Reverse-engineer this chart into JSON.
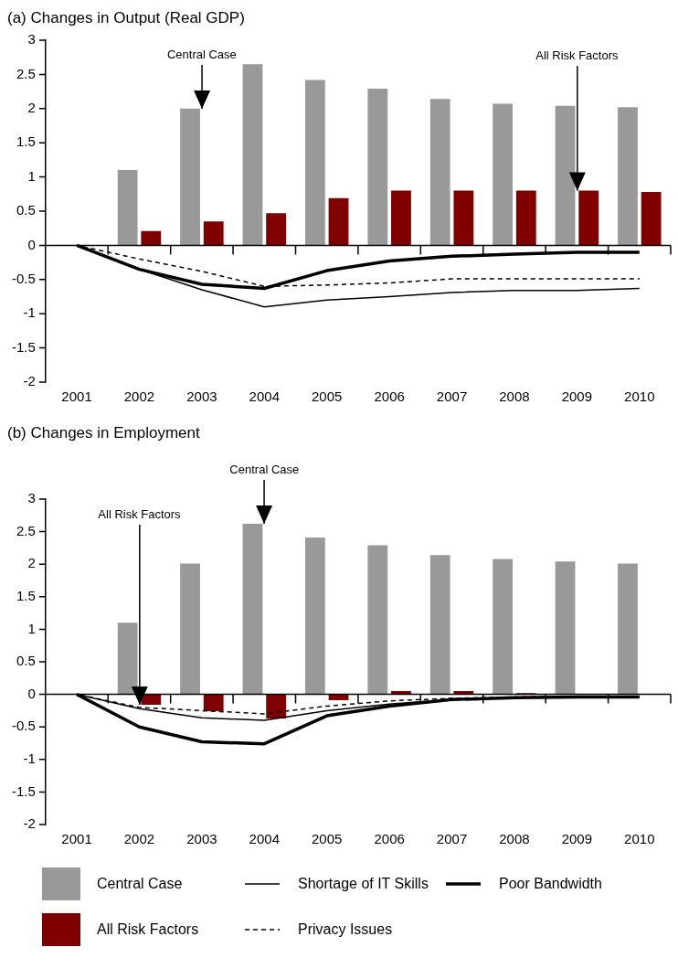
{
  "chart_data": [
    {
      "type": "bar",
      "title": "(a) Changes in Output (Real GDP)",
      "categories": [
        "2001",
        "2002",
        "2003",
        "2004",
        "2005",
        "2006",
        "2007",
        "2008",
        "2009",
        "2010"
      ],
      "series": [
        {
          "color": "#999999",
          "values": [
            0,
            1.1,
            2.0,
            2.65,
            2.42,
            2.29,
            2.14,
            2.07,
            2.04,
            2.02
          ]
        },
        {
          "color": "#800000",
          "values": [
            0,
            0.21,
            0.35,
            0.47,
            0.69,
            0.8,
            0.8,
            0.8,
            0.8,
            0.78
          ]
        },
        {
          "type": "line",
          "color": "#000000",
          "line_style": "solid",
          "values": [
            0,
            -0.35,
            -0.65,
            -0.9,
            -0.8,
            -0.75,
            -0.69,
            -0.66,
            -0.66,
            -0.63
          ]
        },
        {
          "type": "line",
          "color": "#000000",
          "line_style": "dashed",
          "values": [
            0,
            -0.2,
            -0.38,
            -0.6,
            -0.58,
            -0.55,
            -0.49,
            -0.49,
            -0.49,
            -0.49
          ]
        },
        {
          "type": "line",
          "color": "#000000",
          "line_style": "solid",
          "values": [
            0,
            -0.35,
            -0.57,
            -0.63,
            -0.37,
            -0.23,
            -0.16,
            -0.13,
            -0.1,
            -0.1
          ]
        }
      ],
      "ylim": [
        -2,
        3
      ],
      "yticks": [
        -2,
        -1.5,
        -1,
        -0.5,
        0,
        0.5,
        1,
        1.5,
        2,
        2.5,
        3
      ],
      "grid": false,
      "legend": false,
      "marker": "none",
      "ref_lines": [
        {
          "axis": "y",
          "value": 0,
          "color": "#000000"
        }
      ],
      "annotations": [
        {
          "text": "Central Case",
          "x": "2003",
          "y": 2.0
        },
        {
          "text": "All Risk Factors",
          "x": "2009",
          "y": 0.8
        }
      ]
    },
    {
      "type": "bar",
      "title": "(b) Changes in Employment",
      "categories": [
        "2001",
        "2002",
        "2003",
        "2004",
        "2005",
        "2006",
        "2007",
        "2008",
        "2009",
        "2010"
      ],
      "series": [
        {
          "name": "Central Case",
          "color": "#999999",
          "values": [
            0,
            1.1,
            2.01,
            2.62,
            2.41,
            2.29,
            2.14,
            2.08,
            2.04,
            2.01
          ]
        },
        {
          "name": "All Risk Factors",
          "color": "#800000",
          "values": [
            0,
            -0.16,
            -0.26,
            -0.37,
            -0.09,
            0.05,
            0.05,
            0.02,
            0,
            0
          ]
        },
        {
          "name": "Shortage of IT Skills",
          "type": "line",
          "color": "#000000",
          "line_style": "solid",
          "values": [
            0,
            -0.22,
            -0.36,
            -0.4,
            -0.25,
            -0.15,
            -0.08,
            -0.05,
            -0.04,
            -0.04
          ]
        },
        {
          "name": "Privacy Issues",
          "type": "line",
          "color": "#000000",
          "line_style": "dashed",
          "values": [
            0,
            -0.2,
            -0.25,
            -0.3,
            -0.18,
            -0.1,
            -0.06,
            -0.04,
            -0.03,
            -0.03
          ]
        },
        {
          "name": "Poor Bandwidth",
          "type": "line",
          "color": "#000000",
          "line_style": "solid",
          "values": [
            0,
            -0.5,
            -0.73,
            -0.76,
            -0.33,
            -0.18,
            -0.08,
            -0.05,
            -0.04,
            -0.04
          ]
        }
      ],
      "ylim": [
        -2,
        3
      ],
      "yticks": [
        -2,
        -1.5,
        -1,
        -0.5,
        0,
        0.5,
        1,
        1.5,
        2,
        2.5,
        3
      ],
      "grid": false,
      "legend": "bottom",
      "marker": "none",
      "ref_lines": [
        {
          "axis": "y",
          "value": 0,
          "color": "#000000"
        }
      ],
      "annotations": [
        {
          "text": "All Risk Factors",
          "x": "2002",
          "y": -0.16
        },
        {
          "text": "Central Case",
          "x": "2004",
          "y": 2.62
        }
      ]
    }
  ]
}
